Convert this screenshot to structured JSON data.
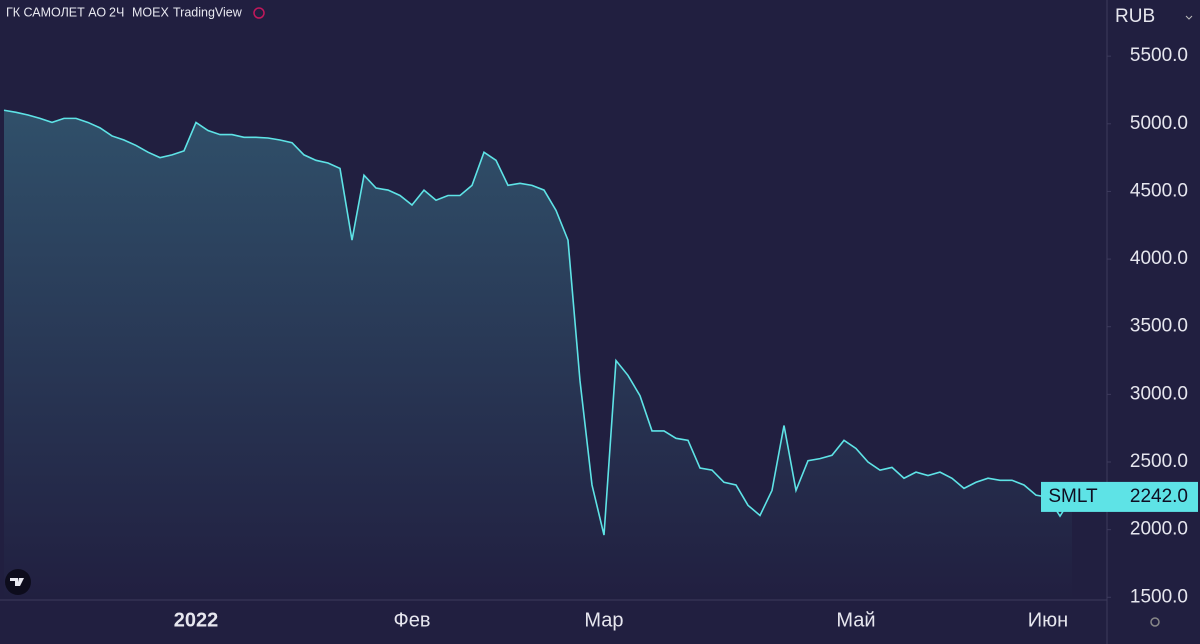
{
  "header": {
    "name": "ГК САМОЛЕТ АО",
    "interval": "2Ч",
    "exchange": "MOEX",
    "source": "TradingView"
  },
  "chart_data": {
    "type": "area",
    "currency": "RUB",
    "categories": [
      null,
      null,
      null,
      null,
      null,
      null,
      null,
      null,
      null,
      null,
      null,
      null,
      null,
      null,
      null,
      null,
      "2022",
      null,
      null,
      null,
      null,
      null,
      null,
      null,
      null,
      null,
      null,
      null,
      null,
      null,
      null,
      null,
      null,
      null,
      "Фев",
      null,
      null,
      null,
      null,
      null,
      null,
      null,
      null,
      null,
      null,
      null,
      null,
      null,
      null,
      null,
      "Мар",
      null,
      null,
      null,
      null,
      null,
      null,
      null,
      null,
      null,
      null,
      null,
      null,
      null,
      null,
      null,
      null,
      null,
      null,
      null,
      null,
      "Май",
      null,
      null,
      null,
      null,
      null,
      null,
      null,
      null,
      null,
      null,
      null,
      null,
      null,
      null,
      null,
      "Июн",
      null,
      null
    ],
    "series": [
      {
        "name": "SMLT",
        "color": "#5ee3e6",
        "values": [
          5100,
          5085,
          5065,
          5040,
          5010,
          5040,
          5040,
          5010,
          4970,
          4910,
          4880,
          4840,
          4790,
          4750,
          4770,
          4800,
          5010,
          4950,
          4920,
          4920,
          4900,
          4900,
          4895,
          4880,
          4860,
          4770,
          4730,
          4710,
          4670,
          4140,
          4620,
          4525,
          4510,
          4470,
          4400,
          4510,
          4435,
          4470,
          4470,
          4545,
          4790,
          4730,
          4545,
          4560,
          4545,
          4510,
          4360,
          4140,
          3100,
          2330,
          1960,
          3250,
          3140,
          2990,
          2730,
          2730,
          2675,
          2660,
          2455,
          2440,
          2350,
          2330,
          2180,
          2105,
          2290,
          2770,
          2290,
          2510,
          2525,
          2550,
          2660,
          2600,
          2500,
          2440,
          2460,
          2380,
          2425,
          2400,
          2425,
          2380,
          2305,
          2350,
          2380,
          2365,
          2365,
          2330,
          2255,
          2240,
          2100,
          2242
        ],
        "last_label": "2242.0"
      }
    ],
    "ylim": [
      1480,
      5915
    ],
    "yticks": [
      {
        "value": 1500,
        "label": "1500.0"
      },
      {
        "value": 2000,
        "label": "2000.0"
      },
      {
        "value": 2500,
        "label": "2500.0"
      },
      {
        "value": 3000,
        "label": "3000.0"
      },
      {
        "value": 3500,
        "label": "3500.0"
      },
      {
        "value": 4000,
        "label": "4000.0"
      },
      {
        "value": 4500,
        "label": "4500.0"
      },
      {
        "value": 5000,
        "label": "5000.0"
      },
      {
        "value": 5500,
        "label": "5500.0"
      }
    ]
  }
}
